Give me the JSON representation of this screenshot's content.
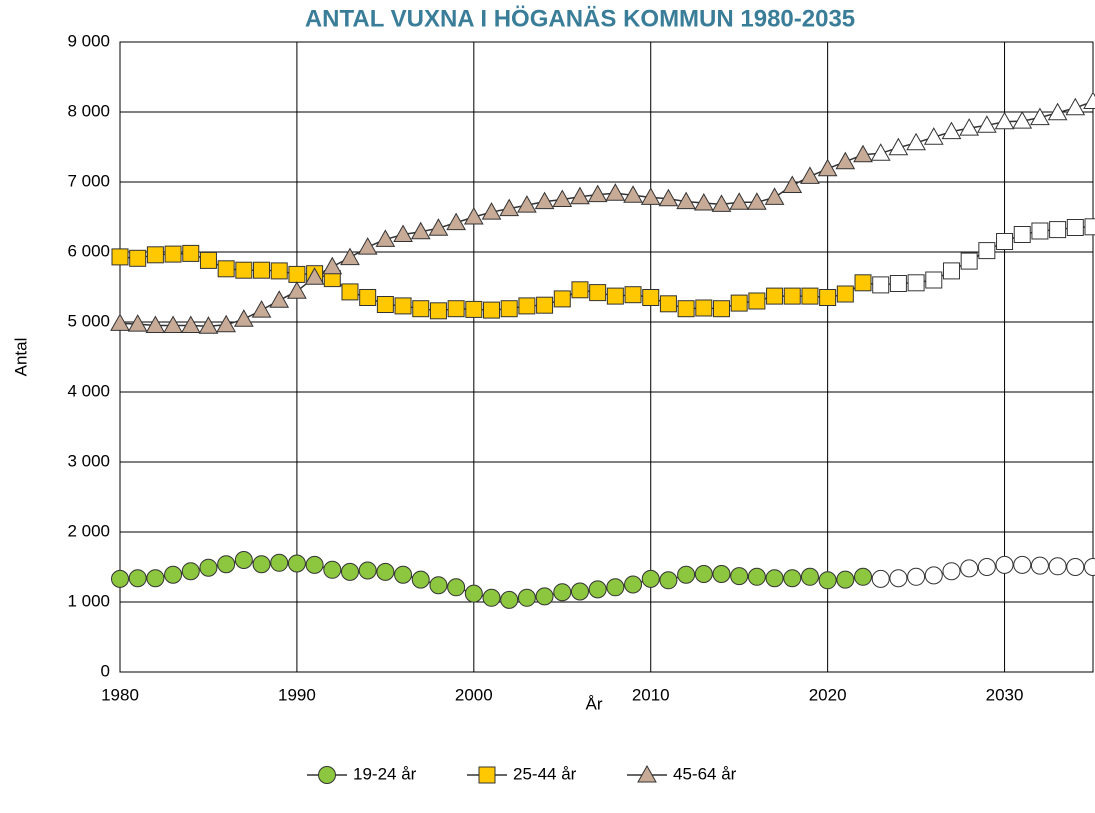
{
  "chart_data": {
    "type": "line",
    "title": "ANTAL VUXNA I HÖGANÄS KOMMUN 1980-2035",
    "x_label": "År",
    "y_label": "Antal",
    "x": [
      1980,
      1981,
      1982,
      1983,
      1984,
      1985,
      1986,
      1987,
      1988,
      1989,
      1990,
      1991,
      1992,
      1993,
      1994,
      1995,
      1996,
      1997,
      1998,
      1999,
      2000,
      2001,
      2002,
      2003,
      2004,
      2005,
      2006,
      2007,
      2008,
      2009,
      2010,
      2011,
      2012,
      2013,
      2014,
      2015,
      2016,
      2017,
      2018,
      2019,
      2020,
      2021,
      2022,
      2023,
      2024,
      2025,
      2026,
      2027,
      2028,
      2029,
      2030,
      2031,
      2032,
      2033,
      2034,
      2035
    ],
    "series": [
      {
        "name": "19-24 år",
        "color": "#8dc63f",
        "marker": "circle",
        "values": [
          1330,
          1340,
          1340,
          1390,
          1440,
          1490,
          1540,
          1600,
          1540,
          1560,
          1550,
          1530,
          1460,
          1430,
          1450,
          1430,
          1390,
          1320,
          1240,
          1210,
          1120,
          1060,
          1030,
          1060,
          1080,
          1140,
          1150,
          1180,
          1210,
          1250,
          1330,
          1310,
          1390,
          1400,
          1400,
          1370,
          1360,
          1340,
          1340,
          1360,
          1310,
          1320,
          1360,
          1330,
          1340,
          1360,
          1380,
          1440,
          1480,
          1500,
          1530,
          1530,
          1520,
          1510,
          1500,
          1500
        ]
      },
      {
        "name": "25-44 år",
        "color": "#ffc800",
        "marker": "square",
        "values": [
          5930,
          5910,
          5960,
          5970,
          5980,
          5880,
          5760,
          5740,
          5740,
          5730,
          5680,
          5690,
          5620,
          5430,
          5350,
          5250,
          5230,
          5190,
          5160,
          5190,
          5180,
          5170,
          5190,
          5230,
          5240,
          5330,
          5460,
          5420,
          5370,
          5390,
          5350,
          5260,
          5190,
          5200,
          5190,
          5270,
          5300,
          5370,
          5370,
          5370,
          5350,
          5400,
          5560,
          5530,
          5550,
          5560,
          5600,
          5730,
          5870,
          6020,
          6150,
          6250,
          6300,
          6320,
          6350,
          6360
        ]
      },
      {
        "name": "45-64 år",
        "color": "#c8ab97",
        "marker": "triangle",
        "values": [
          4980,
          4970,
          4950,
          4950,
          4950,
          4940,
          4960,
          5040,
          5170,
          5310,
          5440,
          5640,
          5790,
          5920,
          6070,
          6180,
          6250,
          6290,
          6340,
          6420,
          6500,
          6570,
          6620,
          6670,
          6720,
          6750,
          6790,
          6820,
          6840,
          6810,
          6780,
          6760,
          6720,
          6700,
          6680,
          6710,
          6710,
          6780,
          6950,
          7080,
          7190,
          7290,
          7390,
          7410,
          7490,
          7560,
          7640,
          7720,
          7770,
          7810,
          7860,
          7870,
          7920,
          7990,
          8060,
          8150
        ]
      }
    ],
    "line_color": "#333333",
    "forecast_from": 2023,
    "forecast_fill": "#ffffff",
    "xlim": [
      1980,
      2035
    ],
    "xticks": [
      1980,
      1990,
      2000,
      2010,
      2020,
      2030
    ],
    "ylim": [
      0,
      9000
    ],
    "yticks": [
      0,
      {
        "value": 1000,
        "label": "1 000"
      },
      {
        "value": 2000,
        "label": "2 000"
      },
      {
        "value": 3000,
        "label": "3 000"
      },
      {
        "value": 4000,
        "label": "4 000"
      },
      {
        "value": 5000,
        "label": "5 000"
      },
      {
        "value": 6000,
        "label": "6 000"
      },
      {
        "value": 7000,
        "label": "7 000"
      },
      {
        "value": 8000,
        "label": "8 000"
      },
      {
        "value": 9000,
        "label": "9 000"
      }
    ],
    "grid": true,
    "legend": "bottom"
  }
}
